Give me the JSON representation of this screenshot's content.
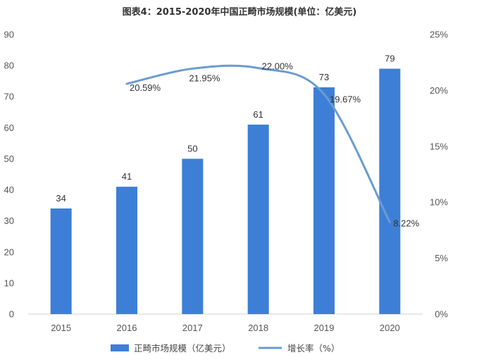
{
  "chart_data": {
    "type": "bar",
    "title": "图表4：2015-2020年中国正畸市场规模(单位：亿美元)",
    "categories": [
      "2015",
      "2016",
      "2017",
      "2018",
      "2019",
      "2020"
    ],
    "series": [
      {
        "name": "正畸市场规模（亿美元）",
        "type": "bar",
        "axis": "left",
        "values": [
          34,
          41,
          50,
          61,
          73,
          79
        ],
        "labels": [
          "34",
          "41",
          "50",
          "61",
          "73",
          "79"
        ]
      },
      {
        "name": "增长率（%）",
        "type": "line",
        "axis": "right",
        "x": [
          "2016",
          "2017",
          "2018",
          "2019",
          "2020"
        ],
        "values": [
          20.59,
          21.95,
          22.0,
          19.67,
          8.22
        ],
        "labels": [
          "20.59%",
          "21.95%",
          "22.00%",
          "19.67%",
          "8.22%"
        ]
      }
    ],
    "y_left": {
      "ylim": [
        0,
        90
      ],
      "ticks": [
        "0",
        "10",
        "20",
        "30",
        "40",
        "50",
        "60",
        "70",
        "80",
        "90"
      ]
    },
    "y_right": {
      "ylim": [
        0,
        25
      ],
      "ticks": [
        "0%",
        "5%",
        "10%",
        "15%",
        "20%",
        "25%"
      ]
    },
    "legend": "bottom",
    "grid": false
  },
  "colors": {
    "bar": "#3d7fd6",
    "line": "#6b9bd1",
    "axis": "#d0d0d0"
  }
}
